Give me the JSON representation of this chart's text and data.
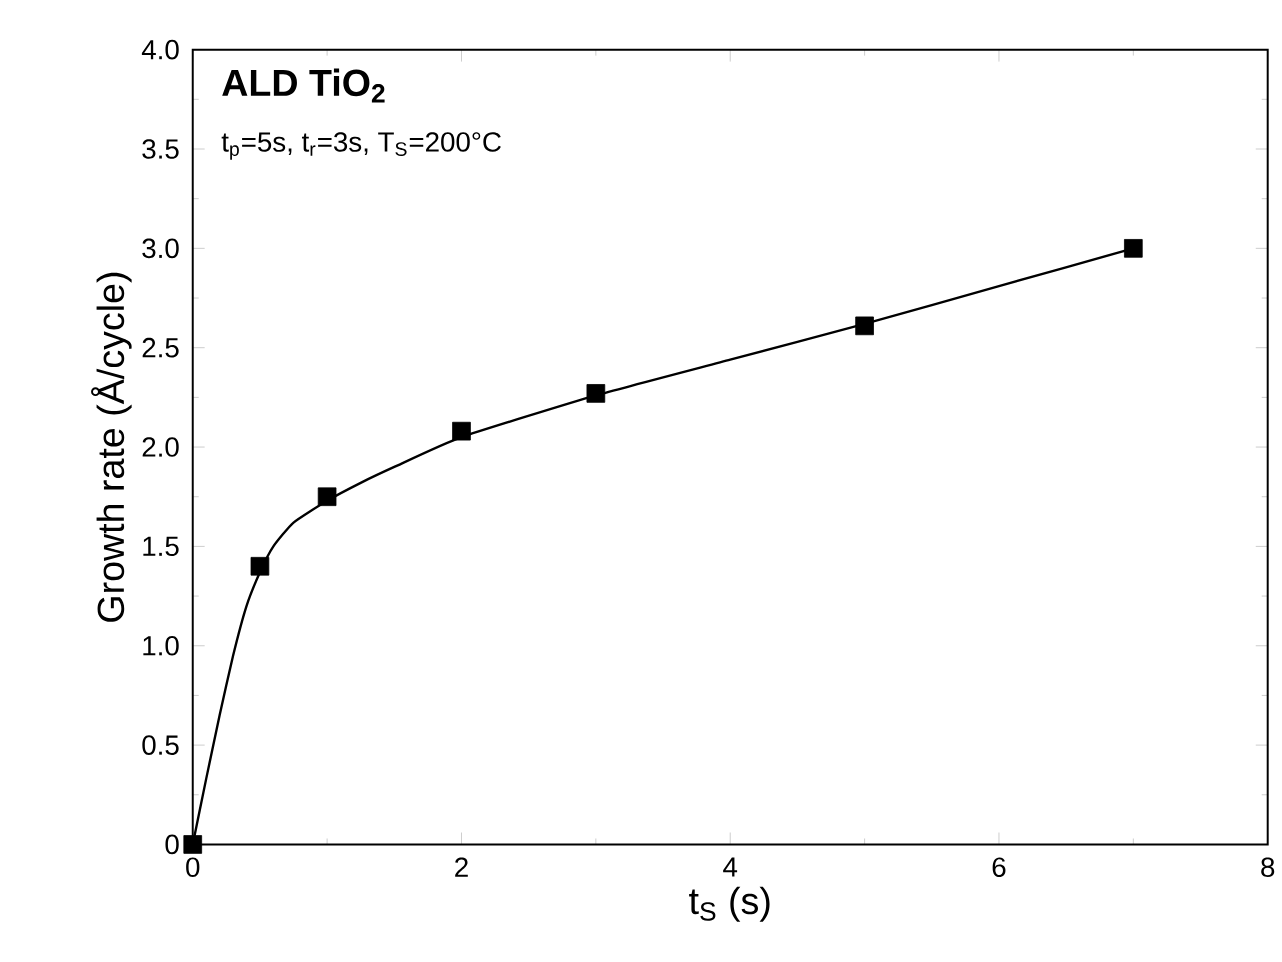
{
  "chart_data": {
    "type": "scatter",
    "title": "ALD TiO$_{2}$",
    "subtitle": "t$_{p}$=5s, t$_{r}$=3s, T$_{S}$=200°C",
    "xlabel": "t$_{S}$ (s)",
    "ylabel": "Growth rate (Å/cycle)",
    "series": [
      {
        "color": "#000000",
        "marker": "square",
        "x": [
          0,
          0.5,
          1,
          2,
          3,
          5,
          7
        ],
        "values": [
          0,
          1.4,
          1.75,
          2.08,
          2.27,
          2.61,
          3.0
        ]
      },
      {
        "type": "line",
        "color": "#000000",
        "x": [
          0,
          0.1,
          0.2,
          0.3,
          0.4,
          0.5,
          0.6,
          0.75,
          1,
          1.25,
          1.5,
          2,
          3,
          4,
          5,
          6,
          7
        ],
        "values": [
          0,
          0.33,
          0.65,
          0.95,
          1.2,
          1.37,
          1.5,
          1.62,
          1.73,
          1.82,
          1.9,
          2.05,
          2.26,
          2.44,
          2.62,
          2.81,
          3.0
        ]
      }
    ],
    "xlim": [
      0,
      8
    ],
    "ylim": [
      0,
      4
    ],
    "xticks": [
      0,
      2,
      4,
      6,
      8
    ],
    "yticks": [
      0,
      0.5,
      {
        "value": 1,
        "label": "1.0"
      },
      1.5,
      {
        "value": 2,
        "label": "2.0"
      },
      2.5,
      {
        "value": 3,
        "label": "3.0"
      },
      3.5,
      {
        "value": 4,
        "label": "4.0"
      }
    ],
    "grid": false
  }
}
